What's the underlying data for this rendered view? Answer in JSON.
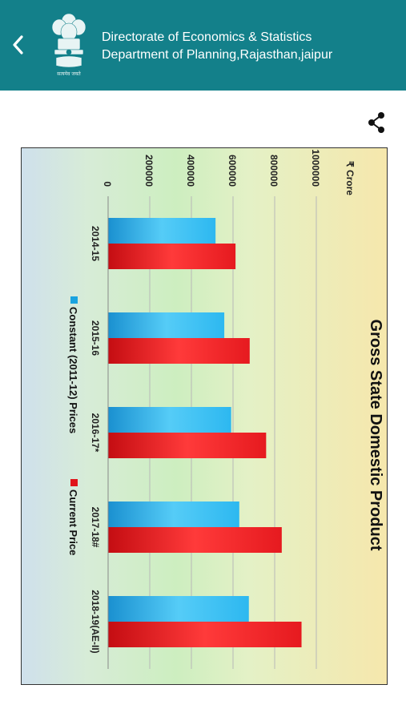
{
  "header": {
    "title_line1": "Directorate of Economics & Statistics",
    "title_line2": "Department of Planning,Rajasthan,jaipur",
    "emblem_motto": "सत्यमेव जयते",
    "background_color": "#13808a"
  },
  "icons": {
    "back": "chevron-left-icon",
    "share": "share-icon",
    "emblem": "state-emblem-icon"
  },
  "chart_data": {
    "type": "bar",
    "orientation": "rotated-90",
    "title": "Gross State Domestic Product",
    "unit_label": "₹ Crore",
    "categories": [
      "2014-15",
      "2015-16",
      "2016-17*",
      "2017-18#",
      "2018-19(AE-II)"
    ],
    "y_ticks": [
      "0",
      "200000",
      "400000",
      "600000",
      "800000",
      "1000000"
    ],
    "ylim": [
      0,
      1000000
    ],
    "grid": true,
    "legend_placement": "bottom",
    "series": [
      {
        "name": "Constant (2011-12) Prices",
        "color": "#1aa3e0",
        "values": [
          516000,
          558000,
          591000,
          630000,
          676000
        ]
      },
      {
        "name": "Current Price",
        "color": "#e0141a",
        "values": [
          612000,
          680000,
          759000,
          834000,
          929000
        ]
      }
    ]
  }
}
